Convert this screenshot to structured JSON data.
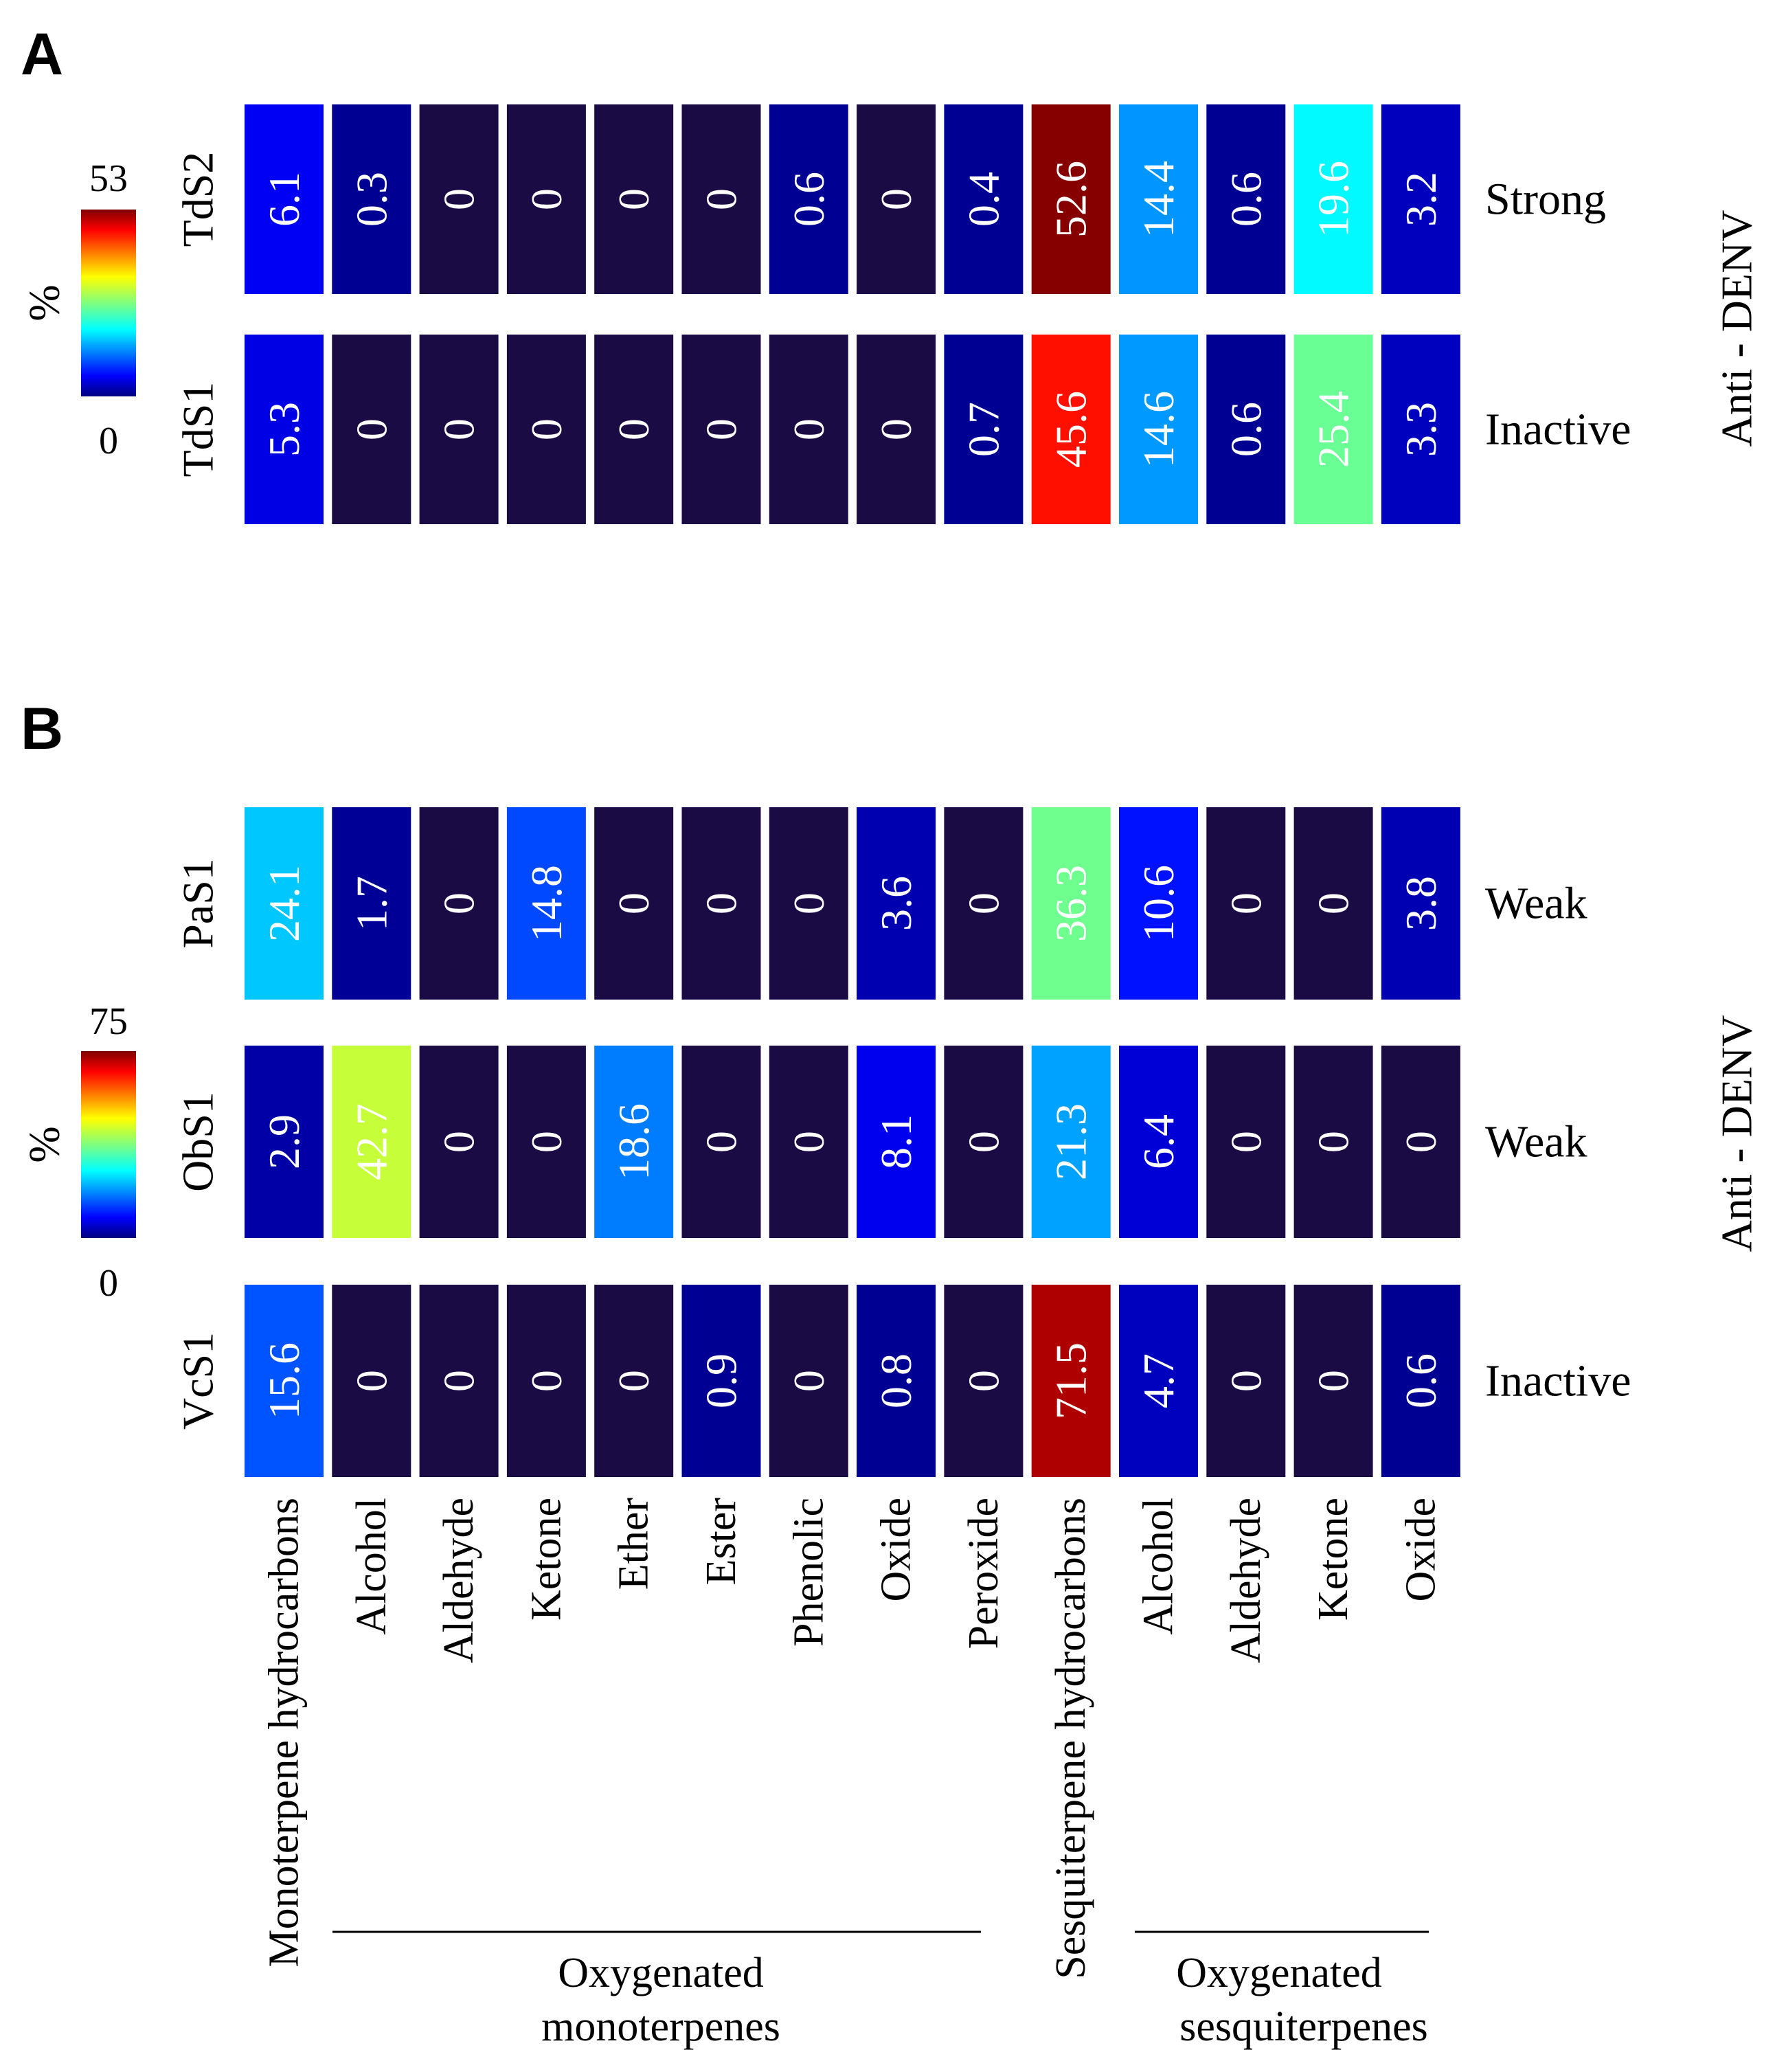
{
  "chart_data": [
    {
      "type": "heatmap",
      "panel_label": "A",
      "colorbar": {
        "unit": "%",
        "min": 0,
        "max": 53,
        "min_label": "0",
        "max_label": "53"
      },
      "rows": [
        {
          "name": "TdS2",
          "activity": "Strong",
          "values": [
            6.1,
            0.3,
            0,
            0,
            0,
            0,
            0.6,
            0,
            0.4,
            52.6,
            14.4,
            0.6,
            19.6,
            3.2
          ],
          "labels": [
            "6.1",
            "0.3",
            "0",
            "0",
            "0",
            "0",
            "0.6",
            "0",
            "0.4",
            "52.6",
            "14.4",
            "0.6",
            "19.6",
            "3.2"
          ]
        },
        {
          "name": "TdS1",
          "activity": "Inactive",
          "values": [
            5.3,
            0,
            0,
            0,
            0,
            0,
            0,
            0,
            0.7,
            45.6,
            14.6,
            0.6,
            25.4,
            3.3
          ],
          "labels": [
            "5.3",
            "0",
            "0",
            "0",
            "0",
            "0",
            "0",
            "0",
            "0.7",
            "45.6",
            "14.6",
            "0.6",
            "25.4",
            "3.3"
          ]
        }
      ],
      "side_label": "Anti - DENV"
    },
    {
      "type": "heatmap",
      "panel_label": "B",
      "colorbar": {
        "unit": "%",
        "min": 0,
        "max": 75,
        "min_label": "0",
        "max_label": "75"
      },
      "rows": [
        {
          "name": "PaS1",
          "activity": "Weak",
          "values": [
            24.1,
            1.7,
            0,
            14.8,
            0,
            0,
            0,
            3.6,
            0,
            36.3,
            10.6,
            0,
            0,
            3.8
          ],
          "labels": [
            "24.1",
            "1.7",
            "0",
            "14.8",
            "0",
            "0",
            "0",
            "3.6",
            "0",
            "36.3",
            "10.6",
            "0",
            "0",
            "3.8"
          ]
        },
        {
          "name": "ObS1",
          "activity": "Weak",
          "values": [
            2.9,
            42.7,
            0,
            0,
            18.6,
            0,
            0,
            8.1,
            0,
            21.3,
            6.4,
            0,
            0,
            0
          ],
          "labels": [
            "2.9",
            "42.7",
            "0",
            "0",
            "18.6",
            "0",
            "0",
            "8.1",
            "0",
            "21.3",
            "6.4",
            "0",
            "0",
            "0"
          ]
        },
        {
          "name": "VcS1",
          "activity": "Inactive",
          "values": [
            15.6,
            0,
            0,
            0,
            0,
            0.9,
            0,
            0.8,
            0,
            71.5,
            4.7,
            0,
            0,
            0.6
          ],
          "labels": [
            "15.6",
            "0",
            "0",
            "0",
            "0",
            "0.9",
            "0",
            "0.8",
            "0",
            "71.5",
            "4.7",
            "0",
            "0",
            "0.6"
          ]
        }
      ],
      "side_label": "Anti - DENV"
    }
  ],
  "columns": [
    "Monoterpene hydrocarbons",
    "Alcohol",
    "Aldehyde",
    "Ketone",
    "Ether",
    "Ester",
    "Phenolic",
    "Oxide",
    "Peroxide",
    "Sesquiterpene hydrocarbons",
    "Alcohol",
    "Aldehyde",
    "Ketone",
    "Oxide"
  ],
  "groups": [
    {
      "line1": "Oxygenated",
      "line2": "monoterpenes"
    },
    {
      "line1": "Oxygenated",
      "line2": "sesquiterpenes"
    }
  ],
  "colors": {
    "zero": "#1a0b45",
    "jet": [
      "#00007f",
      "#0000ff",
      "#007fff",
      "#00ffff",
      "#7fff7f",
      "#ffff00",
      "#ff7f00",
      "#ff0000",
      "#7f0000"
    ]
  }
}
